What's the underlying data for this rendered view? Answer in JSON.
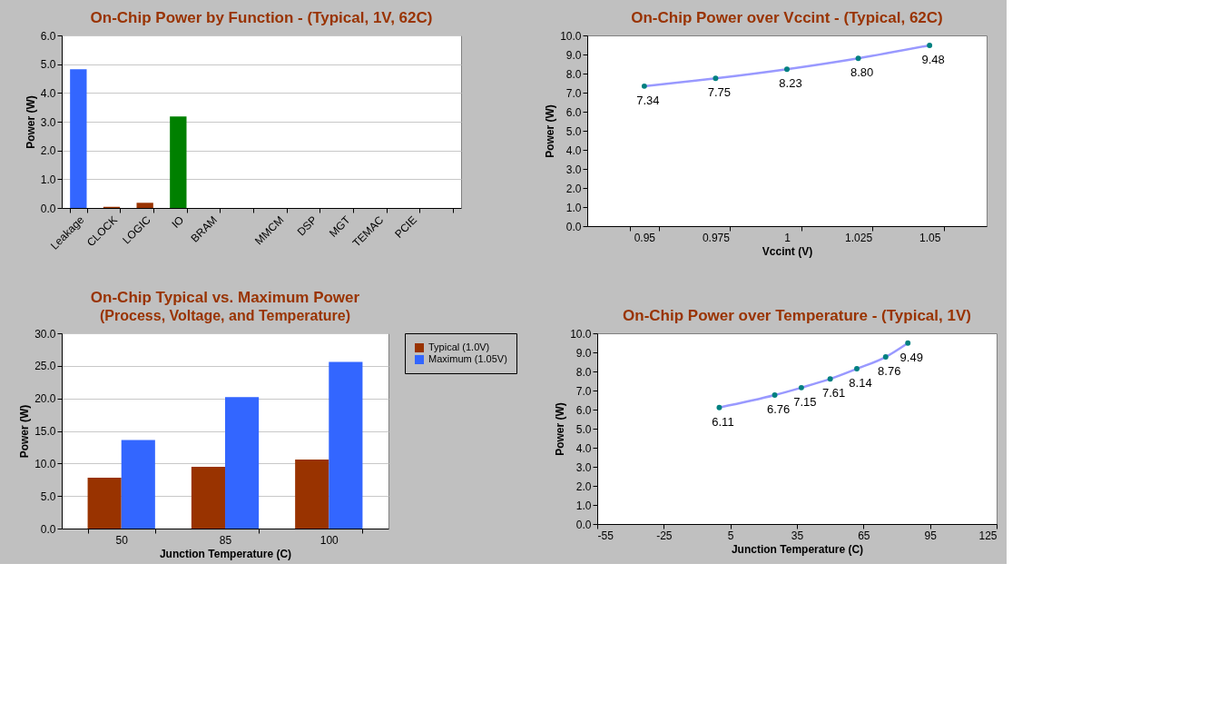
{
  "chart_data": [
    {
      "type": "bar",
      "title": "On-Chip Power by Function - (Typical, 1V, 62C)",
      "ylabel": "Power (W)",
      "categories": [
        "Leakage",
        "CLOCK",
        "LOGIC",
        "IO",
        "BRAM",
        null,
        "MMCM",
        "DSP",
        "MGT",
        "TEMAC",
        "PCIE",
        null
      ],
      "values": [
        4.82,
        0.04,
        0.18,
        3.18,
        0,
        null,
        0,
        0,
        0,
        0,
        0,
        null
      ],
      "colors": [
        "#3366ff",
        "#993300",
        "#993300",
        "#008000",
        "#993300",
        "#993300",
        "#993300",
        "#993300",
        "#993300",
        "#993300",
        "#993300",
        "#993300"
      ],
      "ylim": [
        0,
        6
      ],
      "yticks": [
        {
          "value": 0,
          "label": "0.0"
        },
        {
          "value": 1,
          "label": "1.0"
        },
        {
          "value": 2,
          "label": "2.0"
        },
        {
          "value": 3,
          "label": "3.0"
        },
        {
          "value": 4,
          "label": "4.0"
        },
        {
          "value": 5,
          "label": "5.0"
        },
        {
          "value": 6,
          "label": "6.0"
        }
      ],
      "grid": "y"
    },
    {
      "type": "line",
      "title": "On-Chip Power over Vccint - (Typical, 62C)",
      "xlabel": "Vccint (V)",
      "ylabel": "Power (W)",
      "categories": [
        "0.95",
        "0.975",
        "1",
        "1.025",
        "1.05"
      ],
      "series": [
        {
          "color": "#9999ff",
          "values": [
            7.34,
            7.75,
            8.23,
            8.8,
            9.48
          ]
        }
      ],
      "marker": "circle",
      "value_labels": [
        "7.34",
        "7.75",
        "8.23",
        "8.80",
        "9.48"
      ],
      "ylim": [
        0,
        10
      ],
      "yticks": [
        {
          "value": 0,
          "label": "0.0"
        },
        {
          "value": 1,
          "label": "1.0"
        },
        {
          "value": 2,
          "label": "2.0"
        },
        {
          "value": 3,
          "label": "3.0"
        },
        {
          "value": 4,
          "label": "4.0"
        },
        {
          "value": 5,
          "label": "5.0"
        },
        {
          "value": 6,
          "label": "6.0"
        },
        {
          "value": 7,
          "label": "7.0"
        },
        {
          "value": 8,
          "label": "8.0"
        },
        {
          "value": 9,
          "label": "9.0"
        },
        {
          "value": 10,
          "label": "10.0"
        }
      ]
    },
    {
      "type": "bar",
      "title": "On-Chip Typical vs. Maximum Power",
      "subtitle": "(Process,  Voltage, and Temperature)",
      "xlabel": "Junction Temperature (C)",
      "ylabel": "Power (W)",
      "categories": [
        "50",
        "85",
        "100"
      ],
      "series": [
        {
          "name": "Typical (1.0V)",
          "color": "#993300",
          "values": [
            7.8,
            9.5,
            10.6
          ]
        },
        {
          "name": "Maximum (1.05V)",
          "color": "#3366ff",
          "values": [
            13.6,
            20.2,
            25.6
          ]
        }
      ],
      "ylim": [
        0,
        30
      ],
      "yticks": [
        {
          "value": 0,
          "label": "0.0"
        },
        {
          "value": 5,
          "label": "5.0"
        },
        {
          "value": 10,
          "label": "10.0"
        },
        {
          "value": 15,
          "label": "15.0"
        },
        {
          "value": 20,
          "label": "20.0"
        },
        {
          "value": 25,
          "label": "25.0"
        },
        {
          "value": 30,
          "label": "30.0"
        }
      ],
      "grid": "y",
      "legend": "top right"
    },
    {
      "type": "line",
      "title": "On-Chip Power over Temperature - (Typical, 1V)",
      "xlabel": "Junction Temperature (C)",
      "ylabel": "Power (W)",
      "x": [
        0,
        25,
        37,
        50,
        62,
        75,
        85
      ],
      "series": [
        {
          "color": "#9999ff",
          "values": [
            6.11,
            6.76,
            7.15,
            7.61,
            8.14,
            8.76,
            9.49
          ]
        }
      ],
      "marker": "circle",
      "data_labels": true,
      "xlim": [
        -55,
        125
      ],
      "xticks": [
        -55,
        -25,
        5,
        35,
        65,
        95,
        125
      ],
      "ylim": [
        0,
        10
      ],
      "yticks": [
        {
          "value": 0,
          "label": "0.0"
        },
        {
          "value": 1,
          "label": "1.0"
        },
        {
          "value": 2,
          "label": "2.0"
        },
        {
          "value": 3,
          "label": "3.0"
        },
        {
          "value": 4,
          "label": "4.0"
        },
        {
          "value": 5,
          "label": "5.0"
        },
        {
          "value": 6,
          "label": "6.0"
        },
        {
          "value": 7,
          "label": "7.0"
        },
        {
          "value": 8,
          "label": "8.0"
        },
        {
          "value": 9,
          "label": "9.0"
        },
        {
          "value": 10,
          "label": "10.0"
        }
      ]
    }
  ]
}
